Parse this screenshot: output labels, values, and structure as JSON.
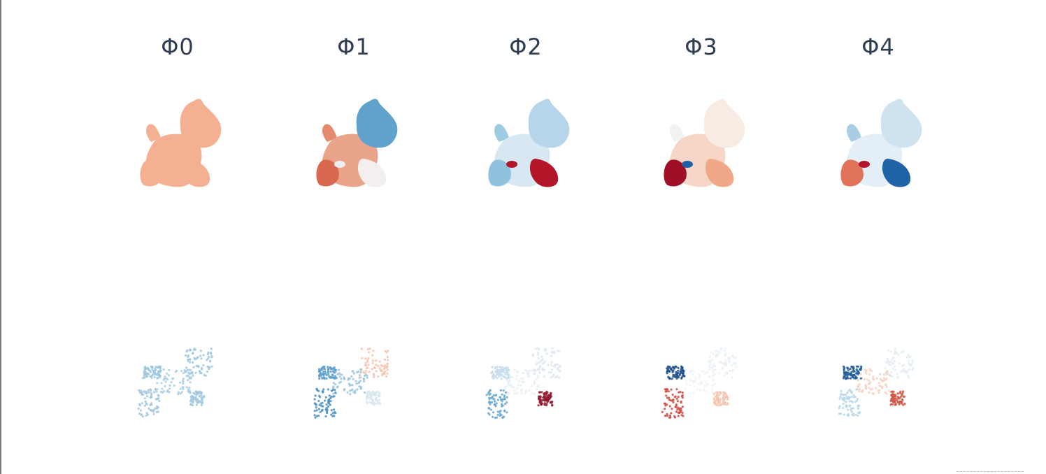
{
  "panels": [
    {
      "label": "Φ0",
      "mesh": {
        "body": "#f5b093",
        "head": "#f5b093",
        "tail": "#f5b093",
        "frontLeg": "#f5b093",
        "backLeg": "#f5b093",
        "paw": "#f5b093"
      },
      "cloud": {
        "body": "#a9cde3",
        "head": "#9ec8e0",
        "tail": "#9ec8e0",
        "legs": "#a3c9e1",
        "paw": "#a3c9e1"
      }
    },
    {
      "label": "Φ1",
      "mesh": {
        "body": "#e9a48b",
        "head": "#5fa3cd",
        "tail": "#e58a6e",
        "frontLeg": "#f2efee",
        "backLeg": "#d8684f",
        "paw": "#eeeeee"
      },
      "cloud": {
        "body": "#9cc4de",
        "head": "#f6c4ab",
        "tail": "#5a9fcb",
        "legs": "#4b8fc2",
        "paw": "#d8e6ef"
      }
    },
    {
      "label": "Φ2",
      "mesh": {
        "body": "#d8e8f2",
        "head": "#b7d5ea",
        "tail": "#9ccbe2",
        "frontLeg": "#b31529",
        "backLeg": "#8fc2df",
        "paw": "#b31529"
      },
      "cloud": {
        "body": "#e6eef5",
        "head": "#dbe8f2",
        "tail": "#c4dcec",
        "legs": "#6aa7d0",
        "paw": "#8e1a2b"
      }
    },
    {
      "label": "Φ3",
      "mesh": {
        "body": "#f6d6c6",
        "head": "#f7ebe4",
        "tail": "#f2f2f2",
        "frontLeg": "#f0a889",
        "backLeg": "#9f0f26",
        "paw": "#1d60a5"
      },
      "cloud": {
        "body": "#eef3f7",
        "head": "#e9f0f5",
        "tail": "#1c4f8a",
        "legs": "#cf4b43",
        "paw": "#f4c4ad"
      }
    },
    {
      "label": "Φ4",
      "mesh": {
        "body": "#e3eef6",
        "head": "#cfe2f0",
        "tail": "#a8cde4",
        "frontLeg": "#1e63a8",
        "backLeg": "#e2735b",
        "paw": "#b31529"
      },
      "cloud": {
        "body": "#f4d2c2",
        "head": "#e2edf5",
        "tail": "#1f5a98",
        "legs": "#b8d6ea",
        "paw": "#d05645"
      }
    }
  ]
}
